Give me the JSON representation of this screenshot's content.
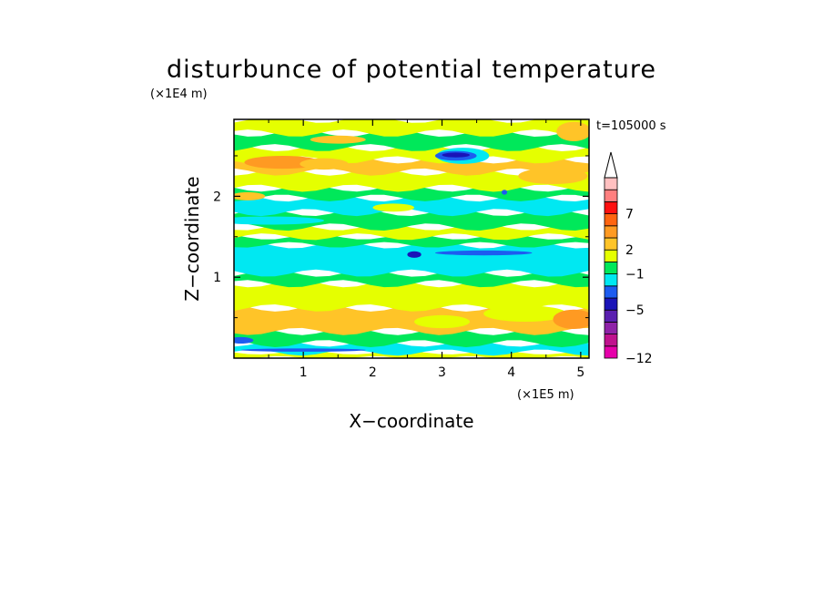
{
  "chart_data": {
    "type": "heatmap",
    "title": "disturbunce of potential temperature",
    "time_label": "t=105000 s",
    "xlabel": "X−coordinate",
    "ylabel": "Z−coordinate",
    "x_scale_label": "(×1E5 m)",
    "y_scale_label": "(×1E4 m)",
    "xlim": [
      0,
      5.12
    ],
    "ylim": [
      0,
      2.95
    ],
    "x_ticks": [
      1,
      2,
      3,
      4,
      5
    ],
    "x_tick_labels": [
      "1",
      "2",
      "3",
      "4",
      "5"
    ],
    "y_ticks": [
      1,
      2
    ],
    "y_tick_labels": [
      "1",
      "2"
    ],
    "colorbar": {
      "levels": [
        {
          "color": "#e600aa"
        },
        {
          "color": "#c0128e"
        },
        {
          "color": "#8f22a8"
        },
        {
          "color": "#5a1fb0"
        },
        {
          "color": "#1a14b8"
        },
        {
          "color": "#1d5cf0"
        },
        {
          "color": "#00e8f2"
        },
        {
          "color": "#00e85a"
        },
        {
          "color": "#e5ff00"
        },
        {
          "color": "#ffc428"
        },
        {
          "color": "#ff9a22"
        },
        {
          "color": "#ff6410"
        },
        {
          "color": "#ff1010"
        },
        {
          "color": "#ff7f7f"
        },
        {
          "color": "#ffc0c0"
        }
      ],
      "labels": [
        {
          "text": "−12",
          "level_index": 0
        },
        {
          "text": "−5",
          "level_index": 4
        },
        {
          "text": "−1",
          "level_index": 7
        },
        {
          "text": "2",
          "level_index": 9
        },
        {
          "text": "7",
          "level_index": 12
        }
      ],
      "extend": "max"
    },
    "bands": [
      {
        "z0": 0.0,
        "z1": 0.07,
        "level": 8
      },
      {
        "z0": 0.07,
        "z1": 0.18,
        "level": 6
      },
      {
        "z0": 0.18,
        "z1": 0.33,
        "level": 7
      },
      {
        "z0": 0.33,
        "z1": 0.62,
        "level": 9
      },
      {
        "z0": 0.62,
        "z1": 0.92,
        "level": 8
      },
      {
        "z0": 0.92,
        "z1": 1.05,
        "level": 7
      },
      {
        "z0": 1.05,
        "z1": 1.4,
        "level": 6
      },
      {
        "z0": 1.4,
        "z1": 1.5,
        "level": 7
      },
      {
        "z0": 1.5,
        "z1": 1.62,
        "level": 8
      },
      {
        "z0": 1.62,
        "z1": 1.8,
        "level": 7
      },
      {
        "z0": 1.8,
        "z1": 1.98,
        "level": 6
      },
      {
        "z0": 1.98,
        "z1": 2.1,
        "level": 7
      },
      {
        "z0": 2.1,
        "z1": 2.3,
        "level": 8
      },
      {
        "z0": 2.3,
        "z1": 2.45,
        "level": 9
      },
      {
        "z0": 2.45,
        "z1": 2.6,
        "level": 8
      },
      {
        "z0": 2.6,
        "z1": 2.78,
        "level": 7
      },
      {
        "z0": 2.78,
        "z1": 2.95,
        "level": 8
      }
    ],
    "blobs": [
      {
        "x": 0.7,
        "z": 2.42,
        "rx": 0.55,
        "rz": 0.08,
        "level": 10
      },
      {
        "x": 1.3,
        "z": 2.4,
        "rx": 0.35,
        "rz": 0.07,
        "level": 9
      },
      {
        "x": 3.3,
        "z": 2.5,
        "rx": 0.38,
        "rz": 0.1,
        "level": 6
      },
      {
        "x": 3.2,
        "z": 2.5,
        "rx": 0.3,
        "rz": 0.06,
        "level": 5
      },
      {
        "x": 3.2,
        "z": 2.51,
        "rx": 0.2,
        "rz": 0.03,
        "level": 4
      },
      {
        "x": 4.6,
        "z": 2.25,
        "rx": 0.5,
        "rz": 0.1,
        "level": 9
      },
      {
        "x": 4.9,
        "z": 2.8,
        "rx": 0.25,
        "rz": 0.12,
        "level": 9
      },
      {
        "x": 2.6,
        "z": 1.28,
        "rx": 0.1,
        "rz": 0.04,
        "level": 4
      },
      {
        "x": 3.6,
        "z": 1.3,
        "rx": 0.7,
        "rz": 0.03,
        "level": 5
      },
      {
        "x": 1.0,
        "z": 1.22,
        "rx": 1.3,
        "rz": 0.12,
        "level": 6
      },
      {
        "x": 4.2,
        "z": 0.55,
        "rx": 0.6,
        "rz": 0.1,
        "level": 8
      },
      {
        "x": 3.0,
        "z": 0.45,
        "rx": 0.4,
        "rz": 0.08,
        "level": 8
      },
      {
        "x": 4.9,
        "z": 0.48,
        "rx": 0.3,
        "rz": 0.12,
        "level": 10
      },
      {
        "x": 0.1,
        "z": 0.22,
        "rx": 0.18,
        "rz": 0.04,
        "level": 5
      },
      {
        "x": 1.0,
        "z": 0.1,
        "rx": 0.9,
        "rz": 0.02,
        "level": 5
      },
      {
        "x": 0.5,
        "z": 1.7,
        "rx": 0.8,
        "rz": 0.05,
        "level": 6
      },
      {
        "x": 2.3,
        "z": 1.86,
        "rx": 0.3,
        "rz": 0.05,
        "level": 8
      },
      {
        "x": 1.5,
        "z": 2.7,
        "rx": 0.4,
        "rz": 0.05,
        "level": 9
      },
      {
        "x": 0.2,
        "z": 2.0,
        "rx": 0.25,
        "rz": 0.05,
        "level": 9
      },
      {
        "x": 3.9,
        "z": 2.05,
        "rx": 0.04,
        "rz": 0.03,
        "level": 5
      }
    ]
  }
}
